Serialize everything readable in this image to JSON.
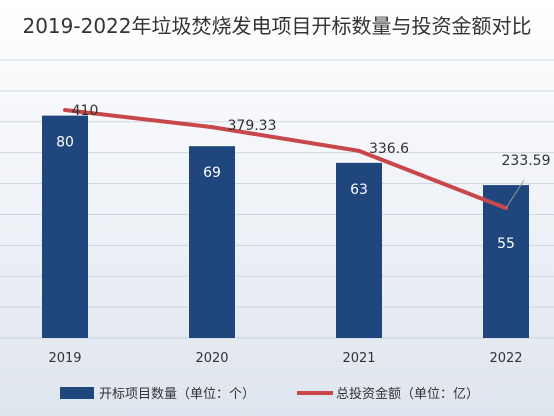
{
  "chart_data": {
    "type": "bar",
    "title": "2019-2022年垃圾焚烧发电项目开标数量与投资金额对比",
    "categories": [
      "2019",
      "2020",
      "2021",
      "2022"
    ],
    "series": [
      {
        "name": "开标项目数量（单位：个）",
        "type": "bar",
        "values": [
          80,
          69,
          63,
          55
        ],
        "color": "#1f467d"
      },
      {
        "name": "总投资金额（单位：亿）",
        "type": "line",
        "values": [
          410,
          379.33,
          336.6,
          233.59
        ],
        "color": "#c8474a"
      }
    ],
    "value_labels": {
      "bar": [
        "80",
        "69",
        "63",
        "55"
      ],
      "line": [
        "410",
        "379.33",
        "336.6",
        "233.59"
      ]
    },
    "ylim_bar": [
      0,
      100
    ],
    "ylim_line": [
      0,
      500
    ],
    "grid": true,
    "legend": "bottom"
  }
}
